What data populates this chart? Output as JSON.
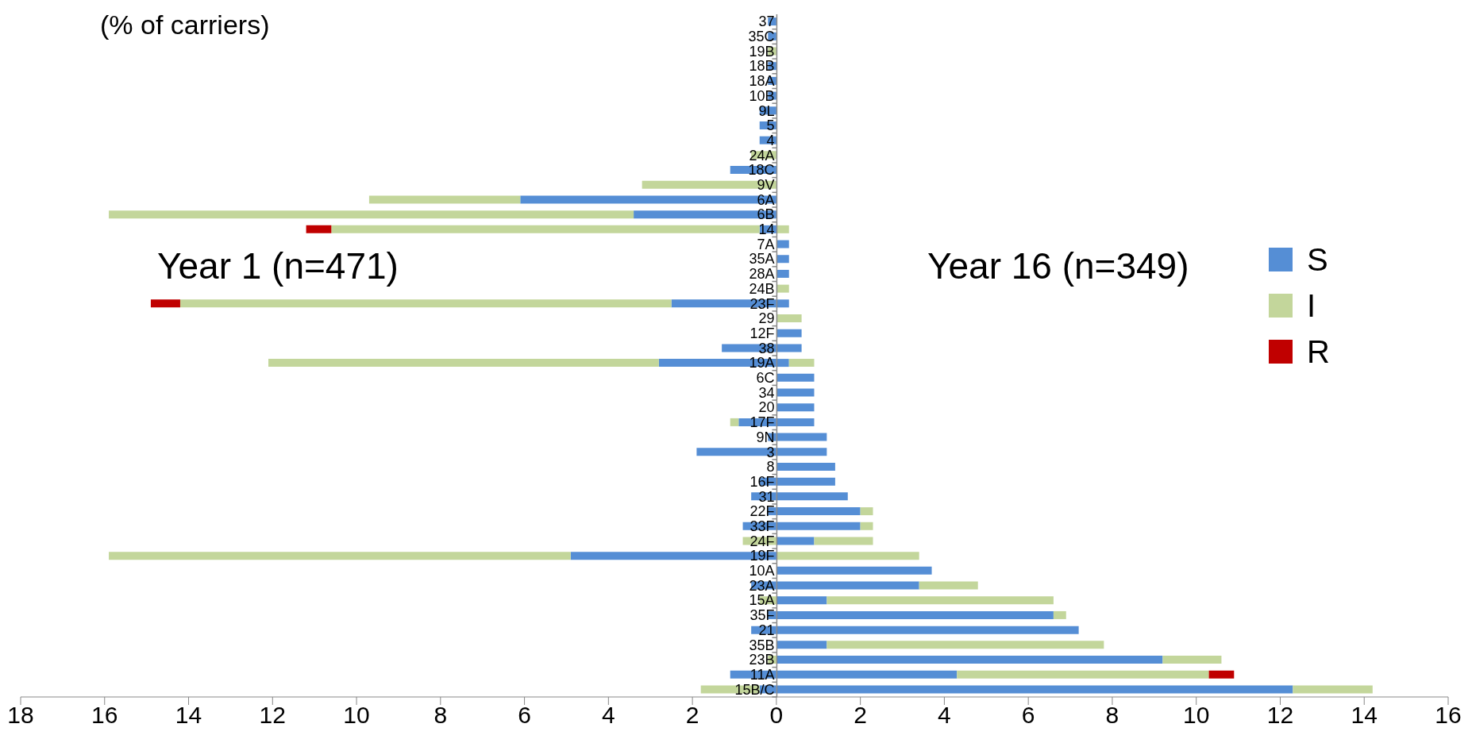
{
  "chart_data": {
    "type": "bar",
    "orientation": "horizontal",
    "stacked": true,
    "xlabel": "(% of carriers)",
    "annotations": [
      "Year 1 (n=471)",
      "Year 16 (n=349)"
    ],
    "categories": [
      "37",
      "35C",
      "19B",
      "18B",
      "18A",
      "10B",
      "9L",
      "5",
      "4",
      "24A",
      "18C",
      "9V",
      "6A",
      "6B",
      "14",
      "7A",
      "35A",
      "28A",
      "24B",
      "23F",
      "29",
      "12F",
      "38",
      "19A",
      "6C",
      "34",
      "20",
      "17F",
      "9N",
      "3",
      "8",
      "16F",
      "31",
      "22F",
      "33F",
      "24F",
      "19F",
      "10A",
      "23A",
      "15A",
      "35F",
      "21",
      "35B",
      "23B",
      "11A",
      "15B/C"
    ],
    "xlim": [
      -18,
      16
    ],
    "xticks": [
      {
        "value": -18,
        "label": "18"
      },
      {
        "value": -16,
        "label": "16"
      },
      {
        "value": -14,
        "label": "14"
      },
      {
        "value": -12,
        "label": "12"
      },
      {
        "value": -10,
        "label": "10"
      },
      {
        "value": -8,
        "label": "8"
      },
      {
        "value": -6,
        "label": "6"
      },
      {
        "value": -4,
        "label": "4"
      },
      {
        "value": -2,
        "label": "2"
      },
      0,
      2,
      4,
      6,
      8,
      10,
      12,
      14,
      16
    ],
    "legend": "right",
    "grid": false,
    "series": [
      {
        "name": "S",
        "color": "#558ed5",
        "values": [
          null,
          null,
          null,
          null,
          null,
          null,
          null,
          null,
          null,
          null,
          null,
          null,
          null,
          null,
          null,
          0.3,
          0.3,
          0.3,
          null,
          0.3,
          null,
          0.6,
          0.6,
          0.3,
          0.9,
          0.9,
          0.9,
          0.9,
          1.2,
          1.2,
          1.4,
          1.4,
          1.7,
          2.0,
          2.0,
          0.9,
          null,
          3.7,
          3.4,
          1.2,
          6.6,
          7.2,
          1.2,
          9.2,
          4.3,
          12.3
        ]
      },
      {
        "name": "I",
        "color": "#c3d69b",
        "values": [
          null,
          null,
          null,
          null,
          null,
          null,
          null,
          null,
          null,
          null,
          null,
          null,
          null,
          null,
          0.3,
          null,
          null,
          null,
          0.3,
          null,
          0.6,
          null,
          null,
          0.6,
          null,
          null,
          null,
          null,
          null,
          null,
          null,
          null,
          null,
          0.3,
          0.3,
          1.4,
          3.4,
          null,
          1.4,
          5.4,
          0.3,
          null,
          6.6,
          1.4,
          6.0,
          1.9
        ]
      },
      {
        "name": "R",
        "color": "#c00000",
        "values": [
          null,
          null,
          null,
          null,
          null,
          null,
          null,
          null,
          null,
          null,
          null,
          null,
          null,
          null,
          null,
          null,
          null,
          null,
          null,
          null,
          null,
          null,
          null,
          null,
          null,
          null,
          null,
          null,
          null,
          null,
          null,
          null,
          null,
          null,
          null,
          null,
          null,
          null,
          null,
          null,
          null,
          null,
          null,
          null,
          0.6,
          null
        ]
      },
      {
        "color": "#558ed5",
        "values": [
          -0.2,
          -0.2,
          null,
          -0.2,
          -0.2,
          -0.2,
          -0.4,
          -0.4,
          -0.4,
          null,
          -1.1,
          null,
          -6.1,
          -3.4,
          -0.4,
          null,
          null,
          null,
          null,
          -2.5,
          null,
          null,
          -1.3,
          -2.8,
          null,
          null,
          null,
          -0.9,
          -0.2,
          -1.9,
          null,
          -0.4,
          -0.6,
          -0.2,
          -0.8,
          null,
          -4.9,
          null,
          -0.6,
          null,
          -0.2,
          -0.6,
          null,
          null,
          -1.1,
          -0.4
        ]
      },
      {
        "color": "#c3d69b",
        "values": [
          null,
          null,
          -0.2,
          null,
          null,
          null,
          null,
          null,
          null,
          -0.6,
          null,
          -3.2,
          -3.6,
          -12.5,
          -10.2,
          null,
          null,
          null,
          null,
          -11.7,
          null,
          null,
          null,
          -9.3,
          null,
          null,
          null,
          -0.2,
          null,
          null,
          null,
          null,
          null,
          null,
          null,
          -0.8,
          -11.0,
          null,
          null,
          -0.4,
          null,
          null,
          null,
          -0.2,
          null,
          -1.4
        ]
      },
      {
        "color": "#c00000",
        "values": [
          null,
          null,
          null,
          null,
          null,
          null,
          null,
          null,
          null,
          null,
          null,
          null,
          null,
          null,
          -0.6,
          null,
          null,
          null,
          null,
          -0.7,
          null,
          null,
          null,
          null,
          null,
          null,
          null,
          null,
          null,
          null,
          null,
          null,
          null,
          null,
          null,
          null,
          null,
          null,
          null,
          null,
          null,
          null,
          null,
          null,
          null,
          null
        ]
      }
    ]
  }
}
